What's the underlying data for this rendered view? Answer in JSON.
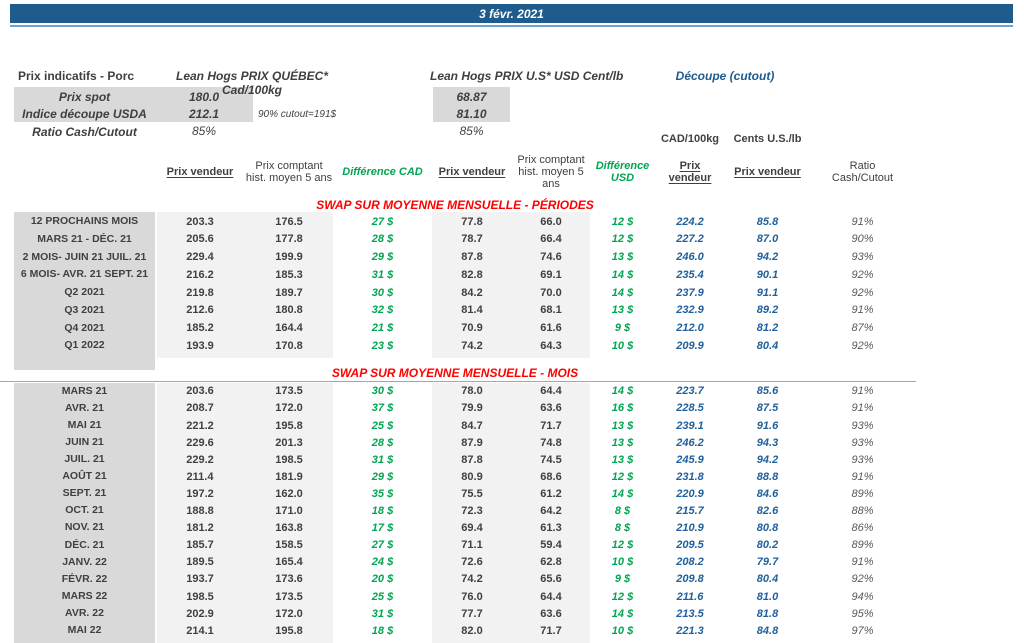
{
  "colors": {
    "banner_bg": "#1f5c8e",
    "banner_underline": "#6fa3d0",
    "accent_blue": "#20609c",
    "accent_green": "#00a651",
    "accent_red": "#ff0000",
    "label_cell_bg": "#d9d9d9",
    "data_cell_bg": "#f2f2f2"
  },
  "banner": {
    "date": "3 févr. 2021"
  },
  "info": {
    "title": "Prix indicatifs - Porc",
    "quebec_title": "Lean Hogs PRIX QUÉBEC* Cad/100kg",
    "us_title": "Lean Hogs PRIX U.S* USD Cent/lb",
    "cutout_title": "Découpe (cutout)",
    "cutout_note": "90% cutout=191$",
    "rows": [
      {
        "label": "Prix spot",
        "cad": "180.0",
        "us": "68.87"
      },
      {
        "label": "Indice découpe USDA",
        "cad": "212.1",
        "us": "81.10"
      },
      {
        "label": "Ratio Cash/Cutout",
        "cad": "85%",
        "us": "85%"
      }
    ]
  },
  "columns": {
    "cad_unit": "CAD/100kg",
    "cents_unit": "Cents U.S./lb",
    "prix_vendeur": "Prix vendeur",
    "prix_comptant": "Prix comptant hist. moyen 5 ans",
    "difference_cad": "Différence CAD",
    "difference_usd": "Différence USD",
    "ratio": "Ratio Cash/Cutout"
  },
  "sections": [
    {
      "title": "SWAP SUR MOYENNE MENSUELLE - PÉRIODES",
      "rows": [
        {
          "label": "12 PROCHAINS MOIS",
          "pv_cad": "203.3",
          "pc_cad": "176.5",
          "diff_cad": "27 $",
          "pv_usd": "77.8",
          "pc_usd": "66.0",
          "diff_usd": "12 $",
          "cut_cad": "224.2",
          "cut_cents": "85.8",
          "ratio": "91%"
        },
        {
          "label": "MARS 21 -  DÉC. 21",
          "pv_cad": "205.6",
          "pc_cad": "177.8",
          "diff_cad": "28 $",
          "pv_usd": "78.7",
          "pc_usd": "66.4",
          "diff_usd": "12 $",
          "cut_cad": "227.2",
          "cut_cents": "87.0",
          "ratio": "90%"
        },
        {
          "label": "2 MOIS- JUIN 21 JUIL. 21",
          "pv_cad": "229.4",
          "pc_cad": "199.9",
          "diff_cad": "29 $",
          "pv_usd": "87.8",
          "pc_usd": "74.6",
          "diff_usd": "13 $",
          "cut_cad": "246.0",
          "cut_cents": "94.2",
          "ratio": "93%"
        },
        {
          "label": "6 MOIS- AVR. 21 SEPT. 21",
          "pv_cad": "216.2",
          "pc_cad": "185.3",
          "diff_cad": "31 $",
          "pv_usd": "82.8",
          "pc_usd": "69.1",
          "diff_usd": "14 $",
          "cut_cad": "235.4",
          "cut_cents": "90.1",
          "ratio": "92%"
        },
        {
          "label": "Q2 2021",
          "pv_cad": "219.8",
          "pc_cad": "189.7",
          "diff_cad": "30 $",
          "pv_usd": "84.2",
          "pc_usd": "70.0",
          "diff_usd": "14 $",
          "cut_cad": "237.9",
          "cut_cents": "91.1",
          "ratio": "92%"
        },
        {
          "label": "Q3 2021",
          "pv_cad": "212.6",
          "pc_cad": "180.8",
          "diff_cad": "32 $",
          "pv_usd": "81.4",
          "pc_usd": "68.1",
          "diff_usd": "13 $",
          "cut_cad": "232.9",
          "cut_cents": "89.2",
          "ratio": "91%"
        },
        {
          "label": "Q4 2021",
          "pv_cad": "185.2",
          "pc_cad": "164.4",
          "diff_cad": "21 $",
          "pv_usd": "70.9",
          "pc_usd": "61.6",
          "diff_usd": "9 $",
          "cut_cad": "212.0",
          "cut_cents": "81.2",
          "ratio": "87%"
        },
        {
          "label": "Q1 2022",
          "pv_cad": "193.9",
          "pc_cad": "170.8",
          "diff_cad": "23 $",
          "pv_usd": "74.2",
          "pc_usd": "64.3",
          "diff_usd": "10 $",
          "cut_cad": "209.9",
          "cut_cents": "80.4",
          "ratio": "92%"
        }
      ]
    },
    {
      "title": "SWAP SUR MOYENNE MENSUELLE - MOIS",
      "rows": [
        {
          "label": "MARS 21",
          "pv_cad": "203.6",
          "pc_cad": "173.5",
          "diff_cad": "30 $",
          "pv_usd": "78.0",
          "pc_usd": "64.4",
          "diff_usd": "14 $",
          "cut_cad": "223.7",
          "cut_cents": "85.6",
          "ratio": "91%"
        },
        {
          "label": "AVR. 21",
          "pv_cad": "208.7",
          "pc_cad": "172.0",
          "diff_cad": "37 $",
          "pv_usd": "79.9",
          "pc_usd": "63.6",
          "diff_usd": "16 $",
          "cut_cad": "228.5",
          "cut_cents": "87.5",
          "ratio": "91%"
        },
        {
          "label": "MAI 21",
          "pv_cad": "221.2",
          "pc_cad": "195.8",
          "diff_cad": "25 $",
          "pv_usd": "84.7",
          "pc_usd": "71.7",
          "diff_usd": "13 $",
          "cut_cad": "239.1",
          "cut_cents": "91.6",
          "ratio": "93%"
        },
        {
          "label": "JUIN 21",
          "pv_cad": "229.6",
          "pc_cad": "201.3",
          "diff_cad": "28 $",
          "pv_usd": "87.9",
          "pc_usd": "74.8",
          "diff_usd": "13 $",
          "cut_cad": "246.2",
          "cut_cents": "94.3",
          "ratio": "93%"
        },
        {
          "label": "JUIL. 21",
          "pv_cad": "229.2",
          "pc_cad": "198.5",
          "diff_cad": "31 $",
          "pv_usd": "87.8",
          "pc_usd": "74.5",
          "diff_usd": "13 $",
          "cut_cad": "245.9",
          "cut_cents": "94.2",
          "ratio": "93%"
        },
        {
          "label": "AOÛT 21",
          "pv_cad": "211.4",
          "pc_cad": "181.9",
          "diff_cad": "29 $",
          "pv_usd": "80.9",
          "pc_usd": "68.6",
          "diff_usd": "12 $",
          "cut_cad": "231.8",
          "cut_cents": "88.8",
          "ratio": "91%"
        },
        {
          "label": "SEPT. 21",
          "pv_cad": "197.2",
          "pc_cad": "162.0",
          "diff_cad": "35 $",
          "pv_usd": "75.5",
          "pc_usd": "61.2",
          "diff_usd": "14 $",
          "cut_cad": "220.9",
          "cut_cents": "84.6",
          "ratio": "89%"
        },
        {
          "label": "OCT. 21",
          "pv_cad": "188.8",
          "pc_cad": "171.0",
          "diff_cad": "18 $",
          "pv_usd": "72.3",
          "pc_usd": "64.2",
          "diff_usd": "8 $",
          "cut_cad": "215.7",
          "cut_cents": "82.6",
          "ratio": "88%"
        },
        {
          "label": "NOV. 21",
          "pv_cad": "181.2",
          "pc_cad": "163.8",
          "diff_cad": "17 $",
          "pv_usd": "69.4",
          "pc_usd": "61.3",
          "diff_usd": "8 $",
          "cut_cad": "210.9",
          "cut_cents": "80.8",
          "ratio": "86%"
        },
        {
          "label": "DÉC. 21",
          "pv_cad": "185.7",
          "pc_cad": "158.5",
          "diff_cad": "27 $",
          "pv_usd": "71.1",
          "pc_usd": "59.4",
          "diff_usd": "12 $",
          "cut_cad": "209.5",
          "cut_cents": "80.2",
          "ratio": "89%"
        },
        {
          "label": "JANV. 22",
          "pv_cad": "189.5",
          "pc_cad": "165.4",
          "diff_cad": "24 $",
          "pv_usd": "72.6",
          "pc_usd": "62.8",
          "diff_usd": "10 $",
          "cut_cad": "208.2",
          "cut_cents": "79.7",
          "ratio": "91%"
        },
        {
          "label": "FÉVR. 22",
          "pv_cad": "193.7",
          "pc_cad": "173.6",
          "diff_cad": "20 $",
          "pv_usd": "74.2",
          "pc_usd": "65.6",
          "diff_usd": "9 $",
          "cut_cad": "209.8",
          "cut_cents": "80.4",
          "ratio": "92%"
        },
        {
          "label": "MARS 22",
          "pv_cad": "198.5",
          "pc_cad": "173.5",
          "diff_cad": "25 $",
          "pv_usd": "76.0",
          "pc_usd": "64.4",
          "diff_usd": "12 $",
          "cut_cad": "211.6",
          "cut_cents": "81.0",
          "ratio": "94%"
        },
        {
          "label": "AVR. 22",
          "pv_cad": "202.9",
          "pc_cad": "172.0",
          "diff_cad": "31 $",
          "pv_usd": "77.7",
          "pc_usd": "63.6",
          "diff_usd": "14 $",
          "cut_cad": "213.5",
          "cut_cents": "81.8",
          "ratio": "95%"
        },
        {
          "label": "MAI 22",
          "pv_cad": "214.1",
          "pc_cad": "195.8",
          "diff_cad": "18 $",
          "pv_usd": "82.0",
          "pc_usd": "71.7",
          "diff_usd": "10 $",
          "cut_cad": "221.3",
          "cut_cents": "84.8",
          "ratio": "97%"
        }
      ]
    }
  ]
}
